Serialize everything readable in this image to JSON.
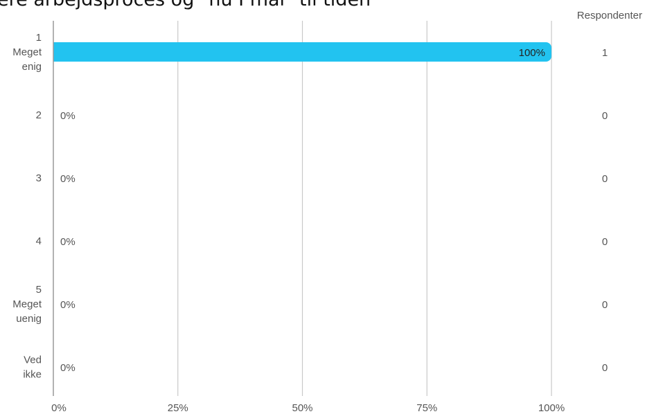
{
  "title": "ere arbejdsproces og \"nu I mål\" til tiden",
  "chart_data": {
    "type": "bar",
    "orientation": "horizontal",
    "title": "ere arbejdsproces og \"nu I mål\" til tiden",
    "categories": [
      [
        "1",
        "Meget",
        "enig"
      ],
      [
        "2"
      ],
      [
        "3"
      ],
      [
        "4"
      ],
      [
        "5",
        "Meget",
        "uenig"
      ],
      [
        "Ved",
        "ikke"
      ]
    ],
    "values": [
      100,
      0,
      0,
      0,
      0,
      0
    ],
    "value_labels": [
      "100%",
      "0%",
      "0%",
      "0%",
      "0%",
      "0%"
    ],
    "respondents_header": "Respondenter",
    "respondents": [
      "1",
      "0",
      "0",
      "0",
      "0",
      "0"
    ],
    "xlim": [
      0,
      100
    ],
    "xticks": [
      0,
      25,
      50,
      75,
      100
    ],
    "xtick_labels": [
      "0%",
      "25%",
      "50%",
      "75%",
      "100%"
    ],
    "grid": "vertical",
    "bar_color": "#22c3f0",
    "grid_color": "#c8c8c8",
    "axis_color": "#999999"
  }
}
